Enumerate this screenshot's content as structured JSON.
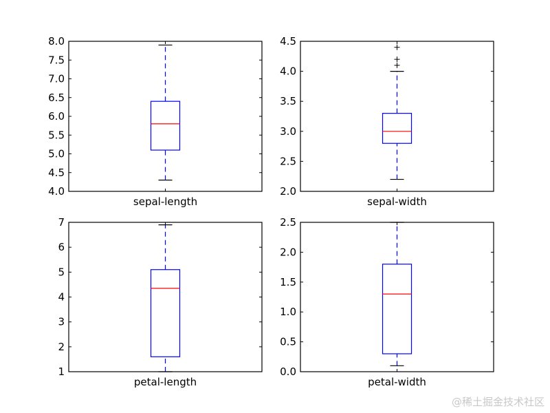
{
  "watermark": "@稀土掘金技术社区",
  "colors": {
    "box": "#0000ff",
    "median": "#ff0000",
    "whisker": "#0000ff",
    "cap": "#000000",
    "flier": "#000000",
    "axes": "#000000"
  },
  "chart_data": [
    {
      "type": "boxplot",
      "category": "sepal-length",
      "ylim": [
        4.0,
        8.0
      ],
      "yticks": [
        4.0,
        4.5,
        5.0,
        5.5,
        6.0,
        6.5,
        7.0,
        7.5,
        8.0
      ],
      "ytick_labels": [
        "4.0",
        "4.5",
        "5.0",
        "5.5",
        "6.0",
        "6.5",
        "7.0",
        "7.5",
        "8.0"
      ],
      "whisker_low": 4.3,
      "q1": 5.1,
      "median": 5.8,
      "q3": 6.4,
      "whisker_high": 7.9,
      "fliers": []
    },
    {
      "type": "boxplot",
      "category": "sepal-width",
      "ylim": [
        2.0,
        4.5
      ],
      "yticks": [
        2.0,
        2.5,
        3.0,
        3.5,
        4.0,
        4.5
      ],
      "ytick_labels": [
        "2.0",
        "2.5",
        "3.0",
        "3.5",
        "4.0",
        "4.5"
      ],
      "whisker_low": 2.2,
      "q1": 2.8,
      "median": 3.0,
      "q3": 3.3,
      "whisker_high": 4.0,
      "fliers": [
        4.1,
        4.2,
        4.4
      ]
    },
    {
      "type": "boxplot",
      "category": "petal-length",
      "ylim": [
        1,
        7
      ],
      "yticks": [
        1,
        2,
        3,
        4,
        5,
        6,
        7
      ],
      "ytick_labels": [
        "1",
        "2",
        "3",
        "4",
        "5",
        "6",
        "7"
      ],
      "whisker_low": 1.0,
      "q1": 1.6,
      "median": 4.35,
      "q3": 5.1,
      "whisker_high": 6.9,
      "fliers": []
    },
    {
      "type": "boxplot",
      "category": "petal-width",
      "ylim": [
        0.0,
        2.5
      ],
      "yticks": [
        0.0,
        0.5,
        1.0,
        1.5,
        2.0,
        2.5
      ],
      "ytick_labels": [
        "0.0",
        "0.5",
        "1.0",
        "1.5",
        "2.0",
        "2.5"
      ],
      "whisker_low": 0.1,
      "q1": 0.3,
      "median": 1.3,
      "q3": 1.8,
      "whisker_high": 2.5,
      "fliers": []
    }
  ]
}
